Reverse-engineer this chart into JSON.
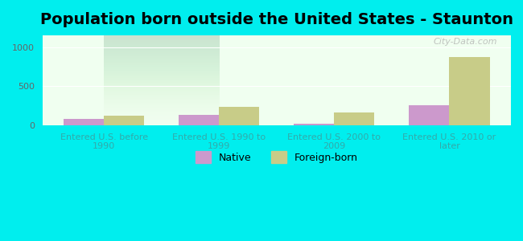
{
  "title": "Population born outside the United States - Staunton",
  "categories": [
    "Entered U.S. before\n1990",
    "Entered U.S. 1990 to\n1999",
    "Entered U.S. 2000 to\n2009",
    "Entered U.S. 2010 or\nlater"
  ],
  "native_values": [
    80,
    130,
    25,
    255
  ],
  "foreign_born_values": [
    120,
    240,
    165,
    870
  ],
  "native_color": "#cc99cc",
  "foreign_born_color": "#c8cc88",
  "background_color_outer": "#00eeee",
  "background_color_inner_top": "#e8f5e0",
  "background_color_inner_bottom": "#f0fff0",
  "ylabel": "",
  "yticks": [
    0,
    500,
    1000
  ],
  "ylim": [
    0,
    1150
  ],
  "bar_width": 0.35,
  "title_fontsize": 14,
  "tick_label_fontsize": 8,
  "legend_labels": [
    "Native",
    "Foreign-born"
  ],
  "watermark": "City-Data.com"
}
